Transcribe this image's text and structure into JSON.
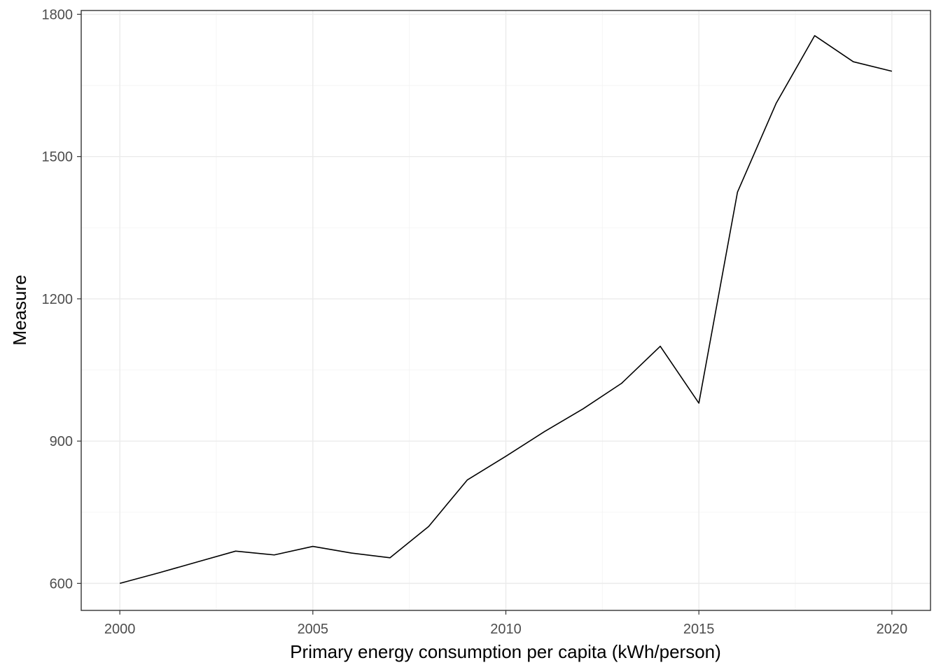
{
  "chart_data": {
    "type": "line",
    "title": "",
    "xlabel": "Primary energy consumption per capita (kWh/person)",
    "ylabel": "Measure",
    "xlim": [
      1999,
      2021
    ],
    "ylim": [
      543,
      1808
    ],
    "x_ticks": [
      2000,
      2005,
      2010,
      2015,
      2020
    ],
    "y_ticks": [
      600,
      900,
      1200,
      1500,
      1800
    ],
    "x_tick_labels": [
      "2000",
      "2005",
      "2010",
      "2015",
      "2020"
    ],
    "y_tick_labels": [
      "600",
      "900",
      "1200",
      "1500",
      "1800"
    ],
    "grid": true,
    "legend": "none",
    "line_color": "#000000",
    "series": [
      {
        "x": [
          2000,
          2001,
          2002,
          2003,
          2004,
          2005,
          2006,
          2007,
          2008,
          2009,
          2010,
          2011,
          2012,
          2013,
          2014,
          2015,
          2016,
          2017,
          2018,
          2019,
          2020
        ],
        "values": [
          600,
          622,
          645,
          668,
          660,
          678,
          664,
          654,
          720,
          818,
          868,
          920,
          968,
          1022,
          1100,
          980,
          1425,
          1612,
          1755,
          1700,
          1680
        ]
      }
    ]
  }
}
